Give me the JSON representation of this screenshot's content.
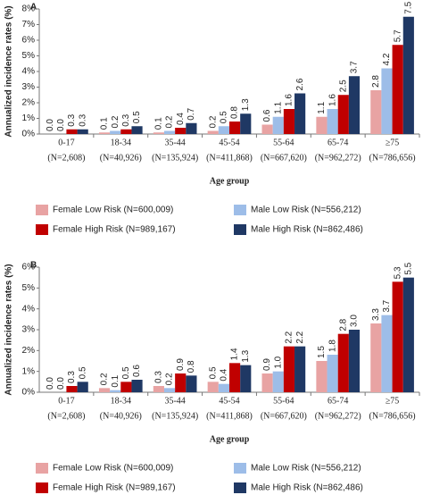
{
  "chart_data": [
    {
      "type": "bar",
      "panel": "A",
      "ylabel": "Annualized incidence rates (%)",
      "xlabel": "Age group",
      "categories": [
        "0-17",
        "18-34",
        "35-44",
        "45-54",
        "55-64",
        "65-74",
        "≥75"
      ],
      "category_sublabels": [
        "(N=2,608)",
        "(N=40,926)",
        "(N=135,924)",
        "(N=411,868)",
        "(N=667,620)",
        "(N=962,272)",
        "(N=786,656)"
      ],
      "ylim": [
        0,
        8
      ],
      "yticks": [
        {
          "value": 0,
          "label": "0%"
        },
        {
          "value": 1,
          "label": "1%"
        },
        {
          "value": 2,
          "label": "2%"
        },
        {
          "value": 3,
          "label": "3%"
        },
        {
          "value": 4,
          "label": "4%"
        },
        {
          "value": 5,
          "label": "5%"
        },
        {
          "value": 6,
          "label": "6%"
        },
        {
          "value": 7,
          "label": "7%"
        },
        {
          "value": 8,
          "label": "8%"
        }
      ],
      "grid": false,
      "series": [
        {
          "name": "Female Low Risk (N=600,009)",
          "color": "#e8a3a3",
          "values": [
            0,
            0.1,
            0.1,
            0.2,
            0.6,
            1.1,
            2.8
          ],
          "value_labels": [
            "0.0",
            "0.1",
            "0.1",
            "0.2",
            "0.6",
            "1.1",
            "2.8"
          ]
        },
        {
          "name": "Male Low Risk (N=556,212)",
          "color": "#9dbde8",
          "values": [
            0,
            0.2,
            0.2,
            0.5,
            1.1,
            1.6,
            4.2
          ],
          "value_labels": [
            "0.0",
            "0.2",
            "0.2",
            "0.5",
            "1.1",
            "1.6",
            "4.2"
          ]
        },
        {
          "name": "Female High Risk (N=989,167)",
          "color": "#c00000",
          "values": [
            0.3,
            0.3,
            0.4,
            0.8,
            1.6,
            2.5,
            5.7
          ],
          "value_labels": [
            "0.3",
            "0.3",
            "0.4",
            "0.8",
            "1.6",
            "2.5",
            "5.7"
          ]
        },
        {
          "name": "Male High Risk (N=862,486)",
          "color": "#1f3864",
          "values": [
            0.3,
            0.5,
            0.7,
            1.3,
            2.6,
            3.7,
            7.5
          ],
          "value_labels": [
            "0.3",
            "0.5",
            "0.7",
            "1.3",
            "2.6",
            "3.7",
            "7.5"
          ]
        }
      ]
    },
    {
      "type": "bar",
      "panel": "B",
      "ylabel": "Annualized incidence rates (%)",
      "xlabel": "Age group",
      "categories": [
        "0-17",
        "18-34",
        "35-44",
        "45-54",
        "55-64",
        "65-74",
        "≥75"
      ],
      "category_sublabels": [
        "(N=2,608)",
        "(N=40,926)",
        "(N=135,924)",
        "(N=411,868)",
        "(N=667,620)",
        "(N=962,272)",
        "(N=786,656)"
      ],
      "ylim": [
        0,
        6
      ],
      "yticks": [
        {
          "value": 0,
          "label": "0%"
        },
        {
          "value": 1,
          "label": "1%"
        },
        {
          "value": 2,
          "label": "2%"
        },
        {
          "value": 3,
          "label": "3%"
        },
        {
          "value": 4,
          "label": "4%"
        },
        {
          "value": 5,
          "label": "5%"
        },
        {
          "value": 6,
          "label": "6%"
        }
      ],
      "grid": false,
      "series": [
        {
          "name": "Female Low Risk (N=600,009)",
          "color": "#e8a3a3",
          "values": [
            0,
            0.2,
            0.3,
            0.5,
            0.9,
            1.5,
            3.3
          ],
          "value_labels": [
            "0.0",
            "0.2",
            "0.3",
            "0.5",
            "0.9",
            "1.5",
            "3.3"
          ]
        },
        {
          "name": "Male Low Risk (N=556,212)",
          "color": "#9dbde8",
          "values": [
            0,
            0.1,
            0.2,
            0.4,
            1,
            1.8,
            3.7
          ],
          "value_labels": [
            "0.0",
            "0.1",
            "0.2",
            "0.4",
            "1.0",
            "1.8",
            "3.7"
          ]
        },
        {
          "name": "Female High Risk (N=989,167)",
          "color": "#c00000",
          "values": [
            0.3,
            0.5,
            0.9,
            1.4,
            2.2,
            2.8,
            5.3
          ],
          "value_labels": [
            "0.3",
            "0.5",
            "0.9",
            "1.4",
            "2.2",
            "2.8",
            "5.3"
          ]
        },
        {
          "name": "Male High Risk (N=862,486)",
          "color": "#1f3864",
          "values": [
            0.5,
            0.6,
            0.8,
            1.3,
            2.2,
            3.0,
            5.5
          ],
          "value_labels": [
            "0.5",
            "0.6",
            "0.8",
            "1.3",
            "2.2",
            "3.0",
            "5.5"
          ]
        }
      ]
    }
  ]
}
